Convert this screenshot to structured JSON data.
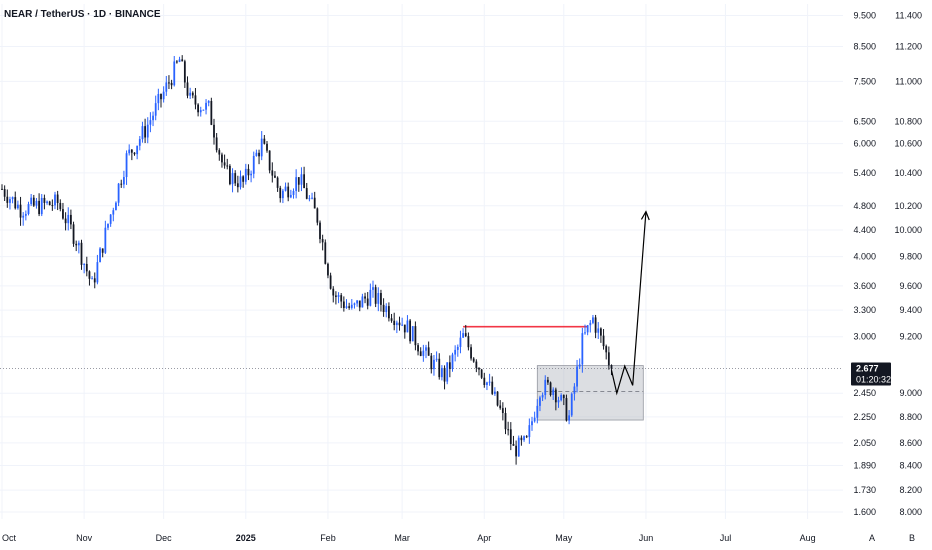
{
  "header": {
    "symbol_title": "NEAR / TetherUS · 1D · BINANCE"
  },
  "colors": {
    "up": "#2962ff",
    "down": "#131722",
    "resistance_line": "#f23645",
    "demand_zone": "#b2b5be",
    "projection": "#000000",
    "price_tag": "#131722",
    "grid": "#f0f3fa"
  },
  "price_tag": {
    "price": "2.677",
    "countdown": "01:20:32"
  },
  "bottom_markers": [
    "A",
    "B"
  ],
  "chart_data": {
    "type": "candlestick",
    "title": "NEAR / TetherUS · 1D · BINANCE",
    "scale": "log",
    "ylim": [
      1.56,
      9.9
    ],
    "x_range": [
      "2024-10-01",
      "2025-08-31"
    ],
    "x_ticks": [
      {
        "date": "2024-10-01",
        "label": "Oct"
      },
      {
        "date": "2024-11-01",
        "label": "Nov"
      },
      {
        "date": "2024-12-01",
        "label": "Dec"
      },
      {
        "date": "2025-01-01",
        "label": "2025"
      },
      {
        "date": "2025-02-01",
        "label": "Feb"
      },
      {
        "date": "2025-03-01",
        "label": "Mar"
      },
      {
        "date": "2025-04-01",
        "label": "Apr"
      },
      {
        "date": "2025-05-01",
        "label": "May"
      },
      {
        "date": "2025-06-01",
        "label": "Jun"
      },
      {
        "date": "2025-07-01",
        "label": "Jul"
      },
      {
        "date": "2025-08-01",
        "label": "Aug"
      }
    ],
    "y_ticks_left": [
      "9.500",
      "8.500",
      "7.500",
      "6.500",
      "6.000",
      "5.400",
      "4.800",
      "4.400",
      "4.000",
      "3.600",
      "3.300",
      "3.000",
      "2.450",
      "2.250",
      "2.050",
      "1.890",
      "1.730",
      "1.600"
    ],
    "y_ticks_right": [
      "11.400",
      "11.200",
      "11.000",
      "10.800",
      "10.600",
      "10.400",
      "10.200",
      "10.000",
      "9.800",
      "9.600",
      "9.400",
      "9.200",
      "9.000",
      "8.800",
      "8.600",
      "8.400",
      "8.200",
      "8.000"
    ],
    "last_price": 2.677,
    "closes": [
      {
        "date": "2024-10-01",
        "close": 5.1
      },
      {
        "date": "2024-10-08",
        "close": 4.75
      },
      {
        "date": "2024-10-15",
        "close": 4.8
      },
      {
        "date": "2024-10-22",
        "close": 4.85
      },
      {
        "date": "2024-10-29",
        "close": 4.25
      },
      {
        "date": "2024-11-04",
        "close": 3.6
      },
      {
        "date": "2024-11-10",
        "close": 4.5
      },
      {
        "date": "2024-11-17",
        "close": 5.7
      },
      {
        "date": "2024-11-24",
        "close": 6.3
      },
      {
        "date": "2024-12-01",
        "close": 7.2
      },
      {
        "date": "2024-12-07",
        "close": 8.1
      },
      {
        "date": "2024-12-11",
        "close": 7.0
      },
      {
        "date": "2024-12-18",
        "close": 6.8
      },
      {
        "date": "2024-12-24",
        "close": 5.4
      },
      {
        "date": "2024-12-31",
        "close": 5.2
      },
      {
        "date": "2025-01-07",
        "close": 6.0
      },
      {
        "date": "2025-01-14",
        "close": 5.0
      },
      {
        "date": "2025-01-21",
        "close": 5.3
      },
      {
        "date": "2025-01-28",
        "close": 4.6
      },
      {
        "date": "2025-02-03",
        "close": 3.5
      },
      {
        "date": "2025-02-10",
        "close": 3.3
      },
      {
        "date": "2025-02-17",
        "close": 3.5
      },
      {
        "date": "2025-02-24",
        "close": 3.3
      },
      {
        "date": "2025-03-03",
        "close": 3.1
      },
      {
        "date": "2025-03-10",
        "close": 2.8
      },
      {
        "date": "2025-03-17",
        "close": 2.6
      },
      {
        "date": "2025-03-24",
        "close": 3.0
      },
      {
        "date": "2025-03-31",
        "close": 2.65
      },
      {
        "date": "2025-04-07",
        "close": 2.3
      },
      {
        "date": "2025-04-12",
        "close": 2.0
      },
      {
        "date": "2025-04-17",
        "close": 2.05
      },
      {
        "date": "2025-04-22",
        "close": 2.5
      },
      {
        "date": "2025-04-27",
        "close": 2.5
      },
      {
        "date": "2025-05-03",
        "close": 2.25
      },
      {
        "date": "2025-05-08",
        "close": 2.95
      },
      {
        "date": "2025-05-12",
        "close": 3.2
      },
      {
        "date": "2025-05-16",
        "close": 2.9
      },
      {
        "date": "2025-05-19",
        "close": 2.677
      }
    ],
    "annotations": {
      "resistance": {
        "price": 3.11,
        "from": "2025-03-24",
        "to": "2025-05-10"
      },
      "demand_zone": {
        "low": 2.225,
        "high": 2.705,
        "from": "2025-04-21",
        "to": "2025-05-31"
      },
      "demand_zone_mid": 2.465,
      "projection": [
        {
          "date": "2025-05-19",
          "price": 2.66
        },
        {
          "date": "2025-05-21",
          "price": 2.45
        },
        {
          "date": "2025-05-24",
          "price": 2.7
        },
        {
          "date": "2025-05-27",
          "price": 2.52
        },
        {
          "date": "2025-06-01",
          "price": 4.7
        }
      ]
    }
  }
}
